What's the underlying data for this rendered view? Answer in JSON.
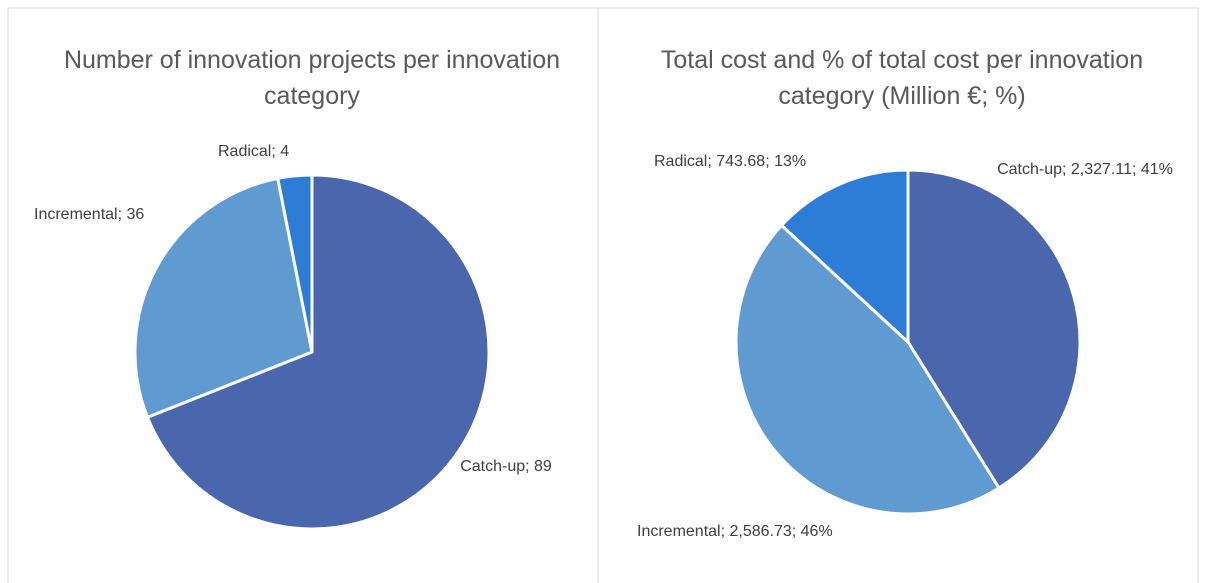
{
  "chart_data": [
    {
      "type": "pie",
      "title": "Number of innovation projects per innovation category",
      "categories": [
        "Catch-up",
        "Incremental",
        "Radical"
      ],
      "values": [
        89,
        36,
        4
      ],
      "value_labels": [
        "Catch-up; 89",
        "Incremental; 36",
        "Radical; 4"
      ],
      "colors": [
        "#4a66ad",
        "#5f9bd1",
        "#2d7dd6"
      ]
    },
    {
      "type": "pie",
      "title": "Total cost and % of total cost per innovation category (Million €; %)",
      "categories": [
        "Catch-up",
        "Incremental",
        "Radical"
      ],
      "values": [
        2327.11,
        2586.73,
        743.68
      ],
      "value_labels": [
        "Catch-up; 2,327.11; 41%",
        "Incremental; 2,586.73; 46%",
        "Radical; 743.68; 13%"
      ],
      "colors": [
        "#4a66ad",
        "#5f9bd1",
        "#2d7dd6"
      ]
    }
  ]
}
